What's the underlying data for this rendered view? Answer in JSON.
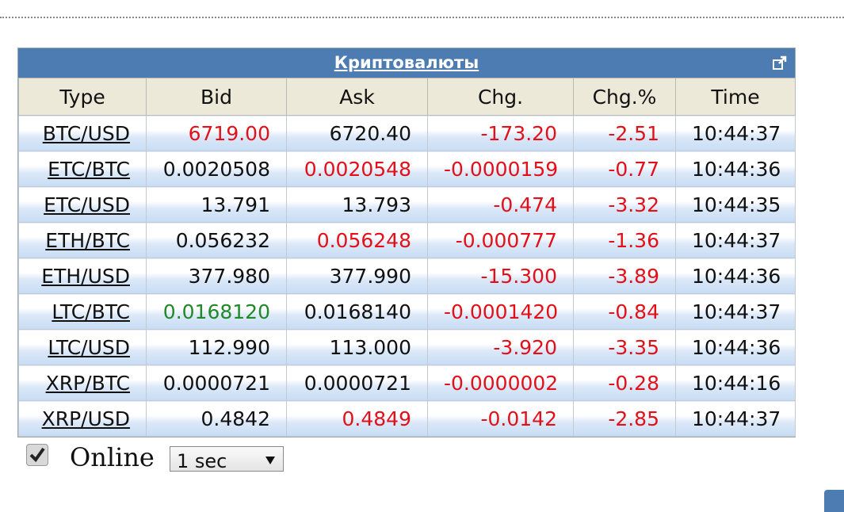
{
  "widget": {
    "title": "Криптовалюты"
  },
  "table": {
    "columns": [
      "Type",
      "Bid",
      "Ask",
      "Chg.",
      "Chg.%",
      "Time"
    ],
    "rows": [
      [
        "BTC/USD",
        {
          "text": "6719.00",
          "color": "#e3101a"
        },
        "6720.40",
        {
          "text": "-173.20",
          "color": "#e3101a"
        },
        {
          "text": "-2.51",
          "color": "#e3101a"
        },
        "10:44:37"
      ],
      [
        "ETC/BTC",
        "0.0020508",
        {
          "text": "0.0020548",
          "color": "#e3101a"
        },
        {
          "text": "-0.0000159",
          "color": "#e3101a"
        },
        {
          "text": "-0.77",
          "color": "#e3101a"
        },
        "10:44:36"
      ],
      [
        "ETC/USD",
        "13.791",
        "13.793",
        {
          "text": "-0.474",
          "color": "#e3101a"
        },
        {
          "text": "-3.32",
          "color": "#e3101a"
        },
        "10:44:35"
      ],
      [
        "ETH/BTC",
        "0.056232",
        {
          "text": "0.056248",
          "color": "#e3101a"
        },
        {
          "text": "-0.000777",
          "color": "#e3101a"
        },
        {
          "text": "-1.36",
          "color": "#e3101a"
        },
        "10:44:37"
      ],
      [
        "ETH/USD",
        "377.980",
        "377.990",
        {
          "text": "-15.300",
          "color": "#e3101a"
        },
        {
          "text": "-3.89",
          "color": "#e3101a"
        },
        "10:44:36"
      ],
      [
        "LTC/BTC",
        {
          "text": "0.0168120",
          "color": "#1e8a2a"
        },
        "0.0168140",
        {
          "text": "-0.0001420",
          "color": "#e3101a"
        },
        {
          "text": "-0.84",
          "color": "#e3101a"
        },
        "10:44:37"
      ],
      [
        "LTC/USD",
        "112.990",
        "113.000",
        {
          "text": "-3.920",
          "color": "#e3101a"
        },
        {
          "text": "-3.35",
          "color": "#e3101a"
        },
        "10:44:36"
      ],
      [
        "XRP/BTC",
        "0.0000721",
        "0.0000721",
        {
          "text": "-0.0000002",
          "color": "#e3101a"
        },
        {
          "text": "-0.28",
          "color": "#e3101a"
        },
        "10:44:16"
      ],
      [
        "XRP/USD",
        "0.4842",
        {
          "text": "0.4849",
          "color": "#e3101a"
        },
        {
          "text": "-0.0142",
          "color": "#e3101a"
        },
        {
          "text": "-2.85",
          "color": "#e3101a"
        },
        "10:44:37"
      ]
    ]
  },
  "controls": {
    "online_label": "Online",
    "interval": "1 sec"
  }
}
